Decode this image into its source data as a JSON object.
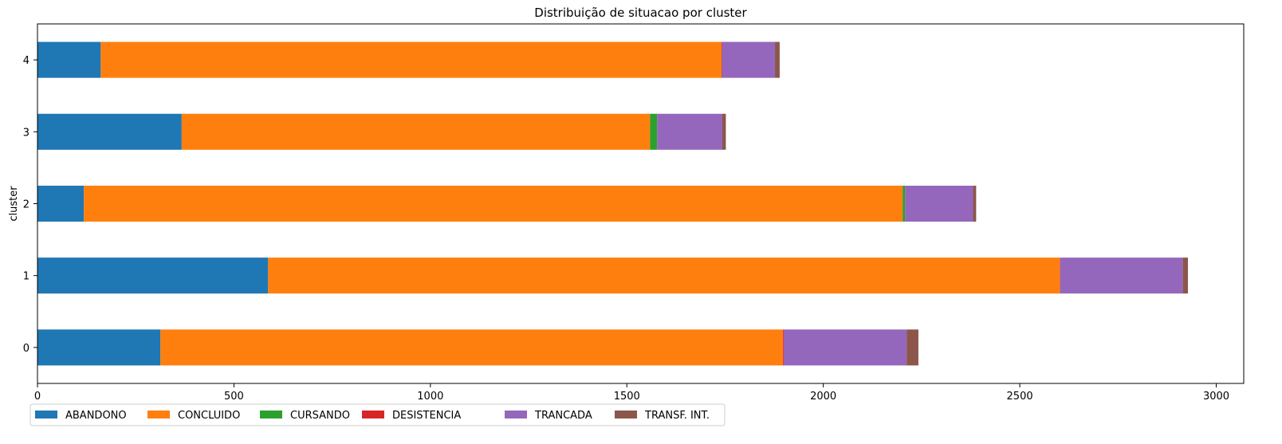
{
  "chart_data": {
    "type": "bar",
    "orientation": "horizontal",
    "stacked": true,
    "title": "Distribuição de situacao por cluster",
    "xlabel": "",
    "ylabel": "cluster",
    "xlim": [
      0,
      3070
    ],
    "xticks": [
      0,
      500,
      1000,
      1500,
      2000,
      2500,
      3000
    ],
    "categories": [
      "0",
      "1",
      "2",
      "3",
      "4"
    ],
    "series": [
      {
        "name": "ABANDONO",
        "color": "#1f77b4",
        "values": [
          313,
          587,
          118,
          367,
          161
        ]
      },
      {
        "name": "CONCLUIDO",
        "color": "#ff7f0e",
        "values": [
          1584,
          2015,
          2084,
          1192,
          1580
        ]
      },
      {
        "name": "CURSANDO",
        "color": "#2ca02c",
        "values": [
          0,
          0,
          6,
          18,
          0
        ]
      },
      {
        "name": "DESISTENCIA",
        "color": "#d62728",
        "values": [
          2,
          1,
          0,
          0,
          1
        ]
      },
      {
        "name": "TRANCADA",
        "color": "#9467bd",
        "values": [
          313,
          312,
          173,
          166,
          135
        ]
      },
      {
        "name": "TRANSF. INT.",
        "color": "#8c564b",
        "values": [
          30,
          13,
          8,
          9,
          12
        ]
      }
    ],
    "legend_position": "bottom-left"
  }
}
